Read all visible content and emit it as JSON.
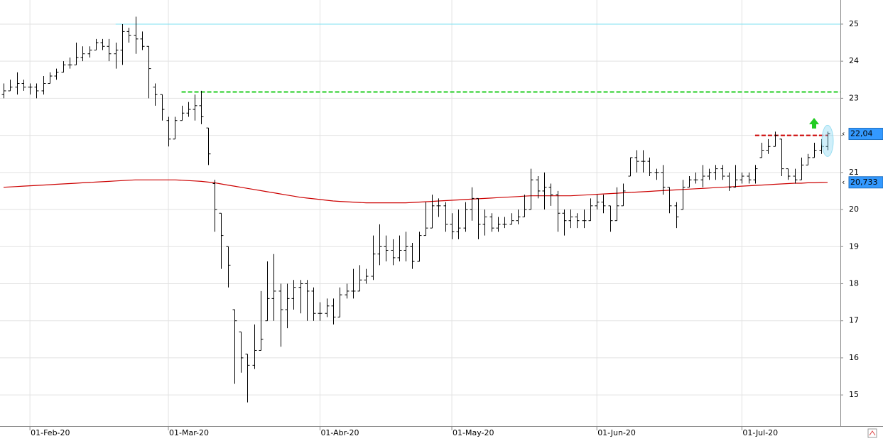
{
  "chart_data": {
    "type": "ohlc",
    "categories": [
      null,
      null,
      null,
      null,
      "01-Feb-20",
      null,
      null,
      null,
      null,
      null,
      null,
      null,
      null,
      null,
      null,
      null,
      null,
      null,
      null,
      null,
      null,
      null,
      null,
      null,
      null,
      "01-Mar-20",
      null,
      null,
      null,
      null,
      null,
      null,
      null,
      null,
      null,
      null,
      null,
      null,
      null,
      null,
      null,
      null,
      null,
      null,
      null,
      null,
      null,
      null,
      "01-Abr-20",
      null,
      null,
      null,
      null,
      null,
      null,
      null,
      null,
      null,
      null,
      null,
      null,
      null,
      null,
      null,
      null,
      null,
      null,
      null,
      "01-May-20",
      null,
      null,
      null,
      null,
      null,
      null,
      null,
      null,
      null,
      null,
      null,
      null,
      null,
      null,
      null,
      null,
      null,
      null,
      null,
      null,
      null,
      "01-Jun-20",
      null,
      null,
      null,
      null,
      null,
      null,
      null,
      null,
      null,
      null,
      null,
      null,
      null,
      null,
      null,
      null,
      null,
      null,
      null,
      null,
      null,
      "01-Jul-20",
      null,
      null,
      null,
      null,
      null,
      null,
      null,
      null,
      null,
      null,
      null,
      null,
      null
    ],
    "ohlc": [
      [
        23.1,
        23.4,
        23.0,
        23.2
      ],
      [
        23.2,
        23.5,
        23.2,
        23.3
      ],
      [
        23.3,
        23.7,
        23.1,
        23.4
      ],
      [
        23.4,
        23.5,
        23.2,
        23.3
      ],
      [
        23.3,
        23.4,
        23.1,
        23.3
      ],
      [
        23.3,
        23.4,
        23.0,
        23.2
      ],
      [
        23.2,
        23.6,
        23.1,
        23.4
      ],
      [
        23.4,
        23.7,
        23.4,
        23.6
      ],
      [
        23.6,
        23.8,
        23.5,
        23.7
      ],
      [
        23.7,
        24.0,
        23.7,
        23.9
      ],
      [
        23.9,
        24.1,
        23.8,
        23.9
      ],
      [
        23.9,
        24.5,
        23.9,
        24.1
      ],
      [
        24.1,
        24.4,
        24.0,
        24.2
      ],
      [
        24.2,
        24.4,
        24.1,
        24.3
      ],
      [
        24.3,
        24.6,
        24.3,
        24.5
      ],
      [
        24.5,
        24.6,
        24.3,
        24.4
      ],
      [
        24.4,
        24.6,
        24.0,
        24.2
      ],
      [
        24.2,
        24.5,
        23.8,
        24.3
      ],
      [
        24.3,
        25.0,
        23.9,
        24.8
      ],
      [
        24.8,
        24.9,
        24.5,
        24.7
      ],
      [
        24.7,
        25.2,
        24.2,
        24.6
      ],
      [
        24.6,
        24.8,
        24.3,
        24.4
      ],
      [
        24.4,
        24.4,
        23.0,
        23.8
      ],
      [
        23.3,
        23.4,
        22.8,
        23.1
      ],
      [
        23.1,
        23.1,
        22.4,
        22.7
      ],
      [
        22.4,
        22.5,
        21.7,
        21.9
      ],
      [
        21.9,
        22.5,
        21.9,
        22.4
      ],
      [
        22.4,
        22.8,
        22.4,
        22.6
      ],
      [
        22.6,
        22.9,
        22.5,
        22.7
      ],
      [
        22.7,
        23.1,
        22.4,
        22.8
      ],
      [
        22.8,
        23.2,
        22.3,
        22.5
      ],
      [
        22.2,
        22.2,
        21.2,
        21.5
      ],
      [
        20.7,
        20.8,
        19.4,
        20.0
      ],
      [
        19.9,
        19.9,
        18.4,
        19.3
      ],
      [
        19.0,
        19.0,
        17.9,
        18.5
      ],
      [
        17.3,
        17.3,
        15.3,
        17.0
      ],
      [
        16.7,
        16.7,
        15.6,
        16.0
      ],
      [
        16.1,
        16.1,
        14.8,
        15.8
      ],
      [
        15.8,
        16.9,
        15.7,
        16.2
      ],
      [
        16.2,
        17.8,
        16.2,
        16.5
      ],
      [
        17.0,
        18.6,
        17.0,
        17.6
      ],
      [
        17.6,
        18.8,
        17.0,
        17.8
      ],
      [
        17.8,
        18.0,
        16.3,
        17.3
      ],
      [
        17.3,
        18.0,
        16.8,
        17.6
      ],
      [
        17.6,
        18.1,
        17.3,
        17.9
      ],
      [
        17.9,
        18.1,
        17.2,
        18.0
      ],
      [
        18.0,
        18.1,
        17.0,
        17.8
      ],
      [
        17.8,
        17.9,
        17.0,
        17.2
      ],
      [
        17.2,
        17.5,
        17.0,
        17.2
      ],
      [
        17.2,
        17.6,
        17.1,
        17.4
      ],
      [
        17.4,
        17.6,
        16.9,
        17.1
      ],
      [
        17.1,
        17.9,
        17.1,
        17.7
      ],
      [
        17.7,
        18.0,
        17.6,
        17.8
      ],
      [
        17.8,
        18.4,
        17.6,
        17.8
      ],
      [
        17.8,
        18.5,
        17.8,
        18.1
      ],
      [
        18.1,
        18.4,
        18.0,
        18.2
      ],
      [
        18.2,
        19.3,
        18.1,
        18.8
      ],
      [
        18.8,
        19.6,
        18.5,
        19.0
      ],
      [
        19.0,
        19.3,
        18.6,
        18.9
      ],
      [
        18.9,
        19.2,
        18.5,
        18.7
      ],
      [
        18.7,
        19.3,
        18.6,
        18.9
      ],
      [
        18.9,
        19.4,
        18.6,
        19.0
      ],
      [
        19.0,
        19.1,
        18.4,
        18.6
      ],
      [
        18.6,
        19.4,
        18.6,
        19.3
      ],
      [
        19.3,
        20.2,
        19.3,
        19.5
      ],
      [
        19.5,
        20.4,
        19.5,
        20.1
      ],
      [
        20.1,
        20.3,
        19.8,
        20.1
      ],
      [
        20.1,
        20.2,
        19.4,
        19.6
      ],
      [
        19.6,
        19.9,
        19.2,
        19.4
      ],
      [
        19.4,
        20.0,
        19.2,
        19.5
      ],
      [
        19.5,
        20.2,
        19.4,
        20.0
      ],
      [
        20.0,
        20.6,
        19.7,
        20.3
      ],
      [
        20.3,
        20.3,
        19.2,
        19.6
      ],
      [
        19.6,
        20.0,
        19.3,
        19.8
      ],
      [
        19.8,
        19.9,
        19.4,
        19.5
      ],
      [
        19.5,
        19.8,
        19.4,
        19.6
      ],
      [
        19.6,
        19.8,
        19.5,
        19.6
      ],
      [
        19.6,
        19.9,
        19.6,
        19.7
      ],
      [
        19.7,
        20.0,
        19.6,
        19.8
      ],
      [
        19.8,
        20.4,
        19.8,
        20.0
      ],
      [
        20.0,
        21.1,
        20.0,
        20.8
      ],
      [
        20.8,
        20.9,
        20.3,
        20.5
      ],
      [
        20.5,
        21.0,
        20.0,
        20.6
      ],
      [
        20.6,
        20.7,
        20.1,
        20.4
      ],
      [
        20.4,
        20.5,
        19.4,
        19.9
      ],
      [
        19.9,
        20.0,
        19.3,
        19.7
      ],
      [
        19.7,
        20.0,
        19.5,
        19.8
      ],
      [
        19.8,
        19.9,
        19.5,
        19.7
      ],
      [
        19.7,
        20.0,
        19.5,
        19.7
      ],
      [
        19.7,
        20.3,
        19.7,
        20.1
      ],
      [
        20.1,
        20.4,
        20.0,
        20.2
      ],
      [
        20.2,
        20.4,
        19.9,
        20.1
      ],
      [
        20.1,
        20.1,
        19.4,
        19.7
      ],
      [
        19.7,
        20.6,
        19.7,
        20.1
      ],
      [
        20.1,
        20.7,
        20.1,
        20.5
      ],
      [
        20.9,
        21.4,
        20.9,
        21.4
      ],
      [
        21.4,
        21.6,
        21.0,
        21.3
      ],
      [
        21.3,
        21.6,
        21.0,
        21.3
      ],
      [
        21.3,
        21.4,
        20.9,
        21.0
      ],
      [
        21.0,
        21.1,
        20.8,
        21.0
      ],
      [
        21.0,
        21.2,
        20.4,
        20.6
      ],
      [
        20.6,
        20.6,
        19.9,
        20.1
      ],
      [
        20.1,
        20.2,
        19.5,
        19.8
      ],
      [
        20.0,
        20.8,
        20.0,
        20.6
      ],
      [
        20.6,
        20.9,
        20.6,
        20.8
      ],
      [
        20.8,
        21.0,
        20.7,
        20.8
      ],
      [
        20.8,
        21.2,
        20.6,
        20.9
      ],
      [
        20.9,
        21.1,
        20.8,
        21.0
      ],
      [
        21.0,
        21.2,
        20.8,
        21.1
      ],
      [
        21.1,
        21.2,
        20.8,
        20.9
      ],
      [
        20.9,
        21.0,
        20.5,
        20.6
      ],
      [
        20.6,
        21.2,
        20.6,
        20.8
      ],
      [
        20.8,
        21.0,
        20.7,
        20.9
      ],
      [
        20.9,
        21.0,
        20.7,
        20.8
      ],
      [
        20.8,
        21.2,
        20.7,
        21.1
      ],
      [
        21.4,
        21.8,
        21.4,
        21.6
      ],
      [
        21.6,
        21.9,
        21.5,
        21.7
      ],
      [
        21.7,
        22.1,
        21.7,
        22.0
      ],
      [
        21.9,
        21.9,
        20.9,
        21.1
      ],
      [
        21.1,
        21.1,
        20.8,
        20.9
      ],
      [
        20.9,
        21.1,
        20.7,
        20.8
      ],
      [
        20.8,
        21.4,
        20.8,
        21.2
      ],
      [
        21.2,
        21.5,
        21.2,
        21.4
      ],
      [
        21.4,
        21.8,
        21.4,
        21.6
      ],
      [
        21.6,
        21.9,
        21.5,
        21.7
      ],
      [
        21.7,
        22.1,
        21.6,
        22.04
      ]
    ],
    "close_label": "22,04",
    "bar_color": "#000000",
    "ma": {
      "color": "#cc0000",
      "value_label": "20,733",
      "values": [
        20.6,
        20.61,
        20.62,
        20.63,
        20.64,
        20.65,
        20.66,
        20.67,
        20.68,
        20.69,
        20.7,
        20.71,
        20.72,
        20.73,
        20.74,
        20.75,
        20.76,
        20.77,
        20.78,
        20.79,
        20.8,
        20.8,
        20.8,
        20.8,
        20.8,
        20.8,
        20.8,
        20.79,
        20.78,
        20.77,
        20.76,
        20.74,
        20.72,
        20.69,
        20.66,
        20.63,
        20.6,
        20.57,
        20.54,
        20.51,
        20.48,
        20.45,
        20.42,
        20.39,
        20.36,
        20.33,
        20.31,
        20.29,
        20.27,
        20.25,
        20.23,
        20.22,
        20.21,
        20.2,
        20.19,
        20.18,
        20.18,
        20.18,
        20.18,
        20.18,
        20.18,
        20.18,
        20.19,
        20.2,
        20.21,
        20.22,
        20.23,
        20.24,
        20.25,
        20.26,
        20.27,
        20.28,
        20.29,
        20.3,
        20.31,
        20.32,
        20.33,
        20.34,
        20.35,
        20.36,
        20.37,
        20.37,
        20.37,
        20.37,
        20.37,
        20.37,
        20.37,
        20.38,
        20.39,
        20.4,
        20.41,
        20.42,
        20.43,
        20.44,
        20.45,
        20.46,
        20.47,
        20.48,
        20.49,
        20.5,
        20.51,
        20.52,
        20.53,
        20.54,
        20.55,
        20.56,
        20.57,
        20.58,
        20.59,
        20.6,
        20.61,
        20.62,
        20.63,
        20.64,
        20.65,
        20.66,
        20.67,
        20.68,
        20.69,
        20.7,
        20.71,
        20.71,
        20.72,
        20.72,
        20.73,
        20.733
      ]
    },
    "levels": [
      {
        "value": 25,
        "color": "#7fe0f0",
        "dash": false,
        "from": 17
      },
      {
        "value": 23.17,
        "color": "#22cc22",
        "dash": true,
        "from": 27
      },
      {
        "value": 22.0,
        "color": "#cc0000",
        "dash": true,
        "from": 114
      }
    ],
    "ylim": [
      14.16,
      25.65
    ],
    "yticks": [
      15,
      16,
      17,
      18,
      19,
      20,
      21,
      22,
      23,
      24,
      25
    ],
    "grid": true
  }
}
